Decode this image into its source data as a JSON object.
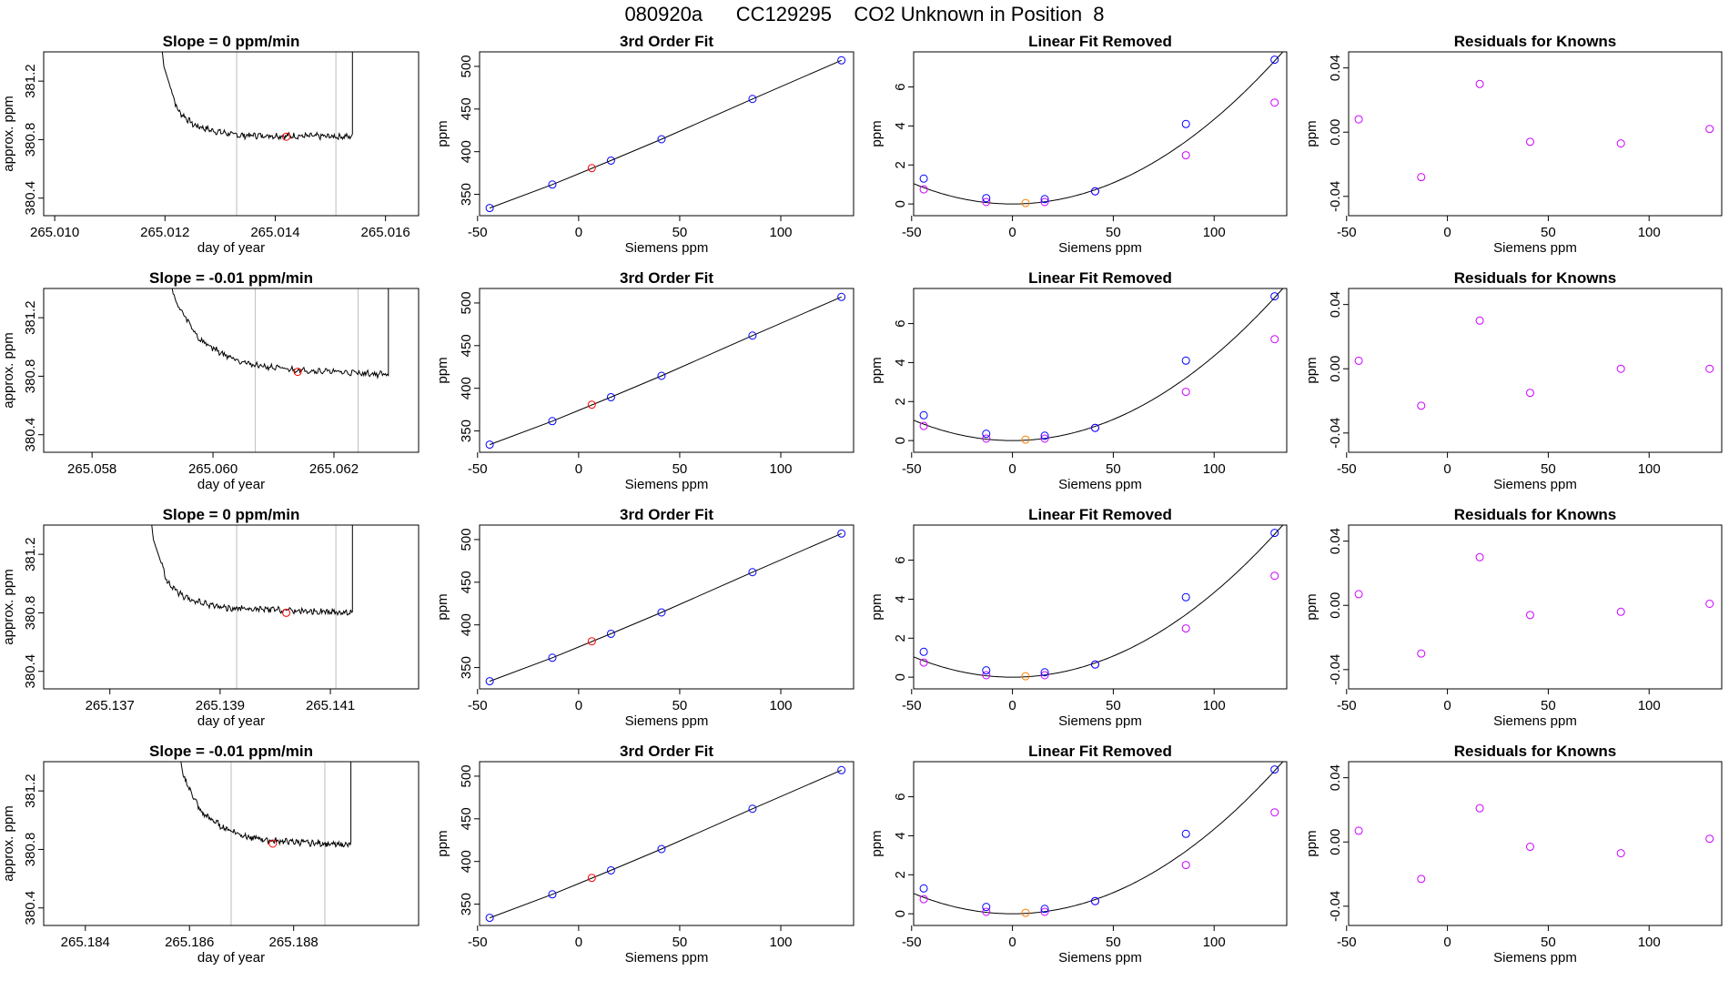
{
  "page_title": "080920a      CC129295    CO2 Unknown in Position  8",
  "colors": {
    "line": "#000000",
    "guide": "#bebebe",
    "known": "#0000ff",
    "unknown": "#ff0000",
    "unknown_lin": "#ff7f00",
    "residual": "#cc00ff"
  },
  "chart_data": [
    {
      "row": 0,
      "panel": "timeseries",
      "type": "line",
      "title": "Slope =  0  ppm/min",
      "xlabel": "day of year",
      "ylabel": "approx. ppm",
      "xlim": [
        265.0098,
        265.0166
      ],
      "ylim": [
        380.28,
        381.4
      ],
      "xticks": [
        265.01,
        265.012,
        265.014,
        265.016
      ],
      "xtick_labels": [
        "265.010",
        "265.012",
        "265.014",
        "265.016"
      ],
      "yticks": [
        380.4,
        380.8,
        381.2
      ],
      "ytick_labels": [
        "380.4",
        "380.8",
        "381.2"
      ],
      "trace": {
        "x_start": 265.0118,
        "x_end": 265.0154,
        "shape": [
          [
            0,
            382.4
          ],
          [
            0.05,
            381.3
          ],
          [
            0.12,
            381.0
          ],
          [
            0.2,
            380.9
          ],
          [
            0.3,
            380.86
          ],
          [
            0.42,
            380.83
          ],
          [
            1,
            380.82
          ]
        ],
        "end_rise": 381.6
      },
      "vlines": [
        265.0133,
        265.0151
      ],
      "marker": {
        "x": 265.0142,
        "y": 380.82
      }
    },
    {
      "row": 0,
      "panel": "fit",
      "type": "scatter",
      "title": "3rd Order Fit",
      "xlabel": "Siemens ppm",
      "ylabel": "ppm",
      "xlim": [
        -49,
        136
      ],
      "ylim": [
        325,
        517
      ],
      "xticks": [
        -50,
        0,
        50,
        100
      ],
      "yticks": [
        350,
        400,
        450,
        500
      ],
      "known_x": [
        -44,
        -13,
        16,
        41,
        86,
        130
      ],
      "known_y": [
        334.0,
        361.5,
        389.6,
        414.6,
        461.8,
        507.1
      ],
      "unknown_x": 6.5,
      "unknown_y": 380.8
    },
    {
      "row": 0,
      "panel": "linear_removed",
      "type": "scatter",
      "title": "Linear Fit Removed",
      "xlabel": "Siemens ppm",
      "ylabel": "ppm",
      "xlim": [
        -49,
        136
      ],
      "ylim": [
        -0.6,
        7.8
      ],
      "xticks": [
        -50,
        0,
        50,
        100
      ],
      "yticks": [
        0,
        2,
        4,
        6
      ],
      "known_x": [
        -44,
        -13,
        16,
        41,
        86,
        130
      ],
      "known_y": [
        1.3,
        0.3,
        0.25,
        0.65,
        4.1,
        7.4
      ],
      "alt_x": [
        -44,
        -13,
        16,
        41,
        86,
        130
      ],
      "alt_y": [
        0.75,
        0.1,
        0.1,
        0.65,
        2.5,
        5.2
      ],
      "unknown_x": 6.5,
      "unknown_y": 0.05,
      "curve_a": 0.000434
    },
    {
      "row": 0,
      "panel": "residuals",
      "type": "scatter",
      "title": "Residuals for Knowns",
      "xlabel": "Siemens ppm",
      "ylabel": "ppm",
      "xlim": [
        -49,
        136
      ],
      "ylim": [
        -0.052,
        0.05
      ],
      "xticks": [
        -50,
        0,
        50,
        100
      ],
      "yticks": [
        -0.04,
        0.0,
        0.04
      ],
      "ytick_labels": [
        "-0.04",
        "0.00",
        "0.04"
      ],
      "points_x": [
        -44,
        -13,
        16,
        41,
        86,
        130
      ],
      "points_y": [
        0.008,
        -0.028,
        0.03,
        -0.006,
        -0.007,
        0.002
      ]
    },
    {
      "row": 1,
      "panel": "timeseries",
      "type": "line",
      "title": "Slope =  -0.01  ppm/min",
      "xlabel": "day of year",
      "ylabel": "approx. ppm",
      "xlim": [
        265.0572,
        265.0634
      ],
      "ylim": [
        380.28,
        381.4
      ],
      "xticks": [
        265.058,
        265.06,
        265.062
      ],
      "xtick_labels": [
        "265.058",
        "265.060",
        "265.062"
      ],
      "yticks": [
        380.4,
        380.8,
        381.2
      ],
      "ytick_labels": [
        "380.4",
        "380.8",
        "381.2"
      ],
      "trace": {
        "x_start": 265.059,
        "x_end": 265.0629,
        "shape": [
          [
            0,
            382.4
          ],
          [
            0.1,
            381.3
          ],
          [
            0.2,
            381.05
          ],
          [
            0.3,
            380.95
          ],
          [
            0.42,
            380.88
          ],
          [
            0.55,
            380.85
          ],
          [
            1,
            380.81
          ]
        ],
        "end_rise": 381.6
      },
      "vlines": [
        265.0607,
        265.0624
      ],
      "marker": {
        "x": 265.0614,
        "y": 380.83
      }
    },
    {
      "row": 1,
      "panel": "fit",
      "type": "scatter",
      "title": "3rd Order Fit",
      "xlabel": "Siemens ppm",
      "ylabel": "ppm",
      "xlim": [
        -49,
        136
      ],
      "ylim": [
        325,
        517
      ],
      "xticks": [
        -50,
        0,
        50,
        100
      ],
      "yticks": [
        350,
        400,
        450,
        500
      ],
      "known_x": [
        -44,
        -13,
        16,
        41,
        86,
        130
      ],
      "known_y": [
        334.0,
        361.5,
        389.6,
        414.6,
        461.8,
        507.1
      ],
      "unknown_x": 6.5,
      "unknown_y": 380.8
    },
    {
      "row": 1,
      "panel": "linear_removed",
      "type": "scatter",
      "title": "Linear Fit Removed",
      "xlabel": "Siemens ppm",
      "ylabel": "ppm",
      "xlim": [
        -49,
        136
      ],
      "ylim": [
        -0.6,
        7.8
      ],
      "xticks": [
        -50,
        0,
        50,
        100
      ],
      "yticks": [
        0,
        2,
        4,
        6
      ],
      "known_x": [
        -44,
        -13,
        16,
        41,
        86,
        130
      ],
      "known_y": [
        1.3,
        0.35,
        0.25,
        0.65,
        4.1,
        7.4
      ],
      "alt_x": [
        -44,
        -13,
        16,
        41,
        86,
        130
      ],
      "alt_y": [
        0.75,
        0.1,
        0.1,
        0.65,
        2.5,
        5.2
      ],
      "unknown_x": 6.5,
      "unknown_y": 0.05,
      "curve_a": 0.000434
    },
    {
      "row": 1,
      "panel": "residuals",
      "type": "scatter",
      "title": "Residuals for Knowns",
      "xlabel": "Siemens ppm",
      "ylabel": "ppm",
      "xlim": [
        -49,
        136
      ],
      "ylim": [
        -0.052,
        0.05
      ],
      "xticks": [
        -50,
        0,
        50,
        100
      ],
      "yticks": [
        -0.04,
        0.0,
        0.04
      ],
      "ytick_labels": [
        "-0.04",
        "0.00",
        "0.04"
      ],
      "points_x": [
        -44,
        -13,
        16,
        41,
        86,
        130
      ],
      "points_y": [
        0.005,
        -0.023,
        0.03,
        -0.015,
        0.0,
        0.0
      ]
    },
    {
      "row": 2,
      "panel": "timeseries",
      "type": "line",
      "title": "Slope =  0  ppm/min",
      "xlabel": "day of year",
      "ylabel": "approx. ppm",
      "xlim": [
        265.1358,
        265.1426
      ],
      "ylim": [
        380.28,
        381.4
      ],
      "xticks": [
        265.137,
        265.139,
        265.141
      ],
      "xtick_labels": [
        "265.137",
        "265.139",
        "265.141"
      ],
      "yticks": [
        380.4,
        380.8,
        381.2
      ],
      "ytick_labels": [
        "380.4",
        "380.8",
        "381.2"
      ],
      "trace": {
        "x_start": 265.1376,
        "x_end": 265.1414,
        "shape": [
          [
            0,
            382.4
          ],
          [
            0.05,
            381.3
          ],
          [
            0.12,
            381.0
          ],
          [
            0.2,
            380.9
          ],
          [
            0.3,
            380.86
          ],
          [
            0.42,
            380.83
          ],
          [
            1,
            380.8
          ]
        ],
        "end_rise": 381.6
      },
      "vlines": [
        265.1393,
        265.1411
      ],
      "marker": {
        "x": 265.1402,
        "y": 380.8
      }
    },
    {
      "row": 2,
      "panel": "fit",
      "type": "scatter",
      "title": "3rd Order Fit",
      "xlabel": "Siemens ppm",
      "ylabel": "ppm",
      "xlim": [
        -49,
        136
      ],
      "ylim": [
        325,
        517
      ],
      "xticks": [
        -50,
        0,
        50,
        100
      ],
      "yticks": [
        350,
        400,
        450,
        500
      ],
      "known_x": [
        -44,
        -13,
        16,
        41,
        86,
        130
      ],
      "known_y": [
        334.0,
        361.5,
        389.6,
        414.6,
        461.8,
        507.1
      ],
      "unknown_x": 6.5,
      "unknown_y": 380.8
    },
    {
      "row": 2,
      "panel": "linear_removed",
      "type": "scatter",
      "title": "Linear Fit Removed",
      "xlabel": "Siemens ppm",
      "ylabel": "ppm",
      "xlim": [
        -49,
        136
      ],
      "ylim": [
        -0.6,
        7.8
      ],
      "xticks": [
        -50,
        0,
        50,
        100
      ],
      "yticks": [
        0,
        2,
        4,
        6
      ],
      "known_x": [
        -44,
        -13,
        16,
        41,
        86,
        130
      ],
      "known_y": [
        1.3,
        0.35,
        0.25,
        0.65,
        4.1,
        7.4
      ],
      "alt_x": [
        -44,
        -13,
        16,
        41,
        86,
        130
      ],
      "alt_y": [
        0.75,
        0.1,
        0.1,
        0.65,
        2.5,
        5.2
      ],
      "unknown_x": 6.5,
      "unknown_y": 0.05,
      "curve_a": 0.000434
    },
    {
      "row": 2,
      "panel": "residuals",
      "type": "scatter",
      "title": "Residuals for Knowns",
      "xlabel": "Siemens ppm",
      "ylabel": "ppm",
      "xlim": [
        -49,
        136
      ],
      "ylim": [
        -0.052,
        0.05
      ],
      "xticks": [
        -50,
        0,
        50,
        100
      ],
      "yticks": [
        -0.04,
        0.0,
        0.04
      ],
      "ytick_labels": [
        "-0.04",
        "0.00",
        "0.04"
      ],
      "points_x": [
        -44,
        -13,
        16,
        41,
        86,
        130
      ],
      "points_y": [
        0.007,
        -0.03,
        0.03,
        -0.006,
        -0.004,
        0.001
      ]
    },
    {
      "row": 3,
      "panel": "timeseries",
      "type": "line",
      "title": "Slope =  -0.01  ppm/min",
      "xlabel": "day of year",
      "ylabel": "approx. ppm",
      "xlim": [
        265.1832,
        265.1904
      ],
      "ylim": [
        380.28,
        381.4
      ],
      "xticks": [
        265.184,
        265.186,
        265.188
      ],
      "xtick_labels": [
        "265.184",
        "265.186",
        "265.188"
      ],
      "yticks": [
        380.4,
        380.8,
        381.2
      ],
      "ytick_labels": [
        "380.4",
        "380.8",
        "381.2"
      ],
      "trace": {
        "x_start": 265.1856,
        "x_end": 265.1891,
        "shape": [
          [
            0,
            382.4
          ],
          [
            0.08,
            381.3
          ],
          [
            0.18,
            381.05
          ],
          [
            0.3,
            380.95
          ],
          [
            0.42,
            380.89
          ],
          [
            0.55,
            380.86
          ],
          [
            1,
            380.83
          ]
        ],
        "end_rise": 381.6
      },
      "vlines": [
        265.1868,
        265.1886
      ],
      "marker": {
        "x": 265.1876,
        "y": 380.84
      }
    },
    {
      "row": 3,
      "panel": "fit",
      "type": "scatter",
      "title": "3rd Order Fit",
      "xlabel": "Siemens ppm",
      "ylabel": "ppm",
      "xlim": [
        -49,
        136
      ],
      "ylim": [
        325,
        517
      ],
      "xticks": [
        -50,
        0,
        50,
        100
      ],
      "yticks": [
        350,
        400,
        450,
        500
      ],
      "known_x": [
        -44,
        -13,
        16,
        41,
        86,
        130
      ],
      "known_y": [
        334.0,
        361.5,
        389.6,
        414.6,
        461.8,
        507.1
      ],
      "unknown_x": 6.5,
      "unknown_y": 380.8
    },
    {
      "row": 3,
      "panel": "linear_removed",
      "type": "scatter",
      "title": "Linear Fit Removed",
      "xlabel": "Siemens ppm",
      "ylabel": "ppm",
      "xlim": [
        -49,
        136
      ],
      "ylim": [
        -0.6,
        7.8
      ],
      "xticks": [
        -50,
        0,
        50,
        100
      ],
      "yticks": [
        0,
        2,
        4,
        6
      ],
      "known_x": [
        -44,
        -13,
        16,
        41,
        86,
        130
      ],
      "known_y": [
        1.3,
        0.35,
        0.25,
        0.65,
        4.1,
        7.4
      ],
      "alt_x": [
        -44,
        -13,
        16,
        41,
        86,
        130
      ],
      "alt_y": [
        0.75,
        0.1,
        0.1,
        0.65,
        2.5,
        5.2
      ],
      "unknown_x": 6.5,
      "unknown_y": 0.05,
      "curve_a": 0.000434
    },
    {
      "row": 3,
      "panel": "residuals",
      "type": "scatter",
      "title": "Residuals for Knowns",
      "xlabel": "Siemens ppm",
      "ylabel": "ppm",
      "xlim": [
        -49,
        136
      ],
      "ylim": [
        -0.052,
        0.05
      ],
      "xticks": [
        -50,
        0,
        50,
        100
      ],
      "yticks": [
        -0.04,
        0.0,
        0.04
      ],
      "ytick_labels": [
        "-0.04",
        "0.00",
        "0.04"
      ],
      "points_x": [
        -44,
        -13,
        16,
        41,
        86,
        130
      ],
      "points_y": [
        0.007,
        -0.023,
        0.021,
        -0.003,
        -0.007,
        0.002
      ]
    }
  ]
}
